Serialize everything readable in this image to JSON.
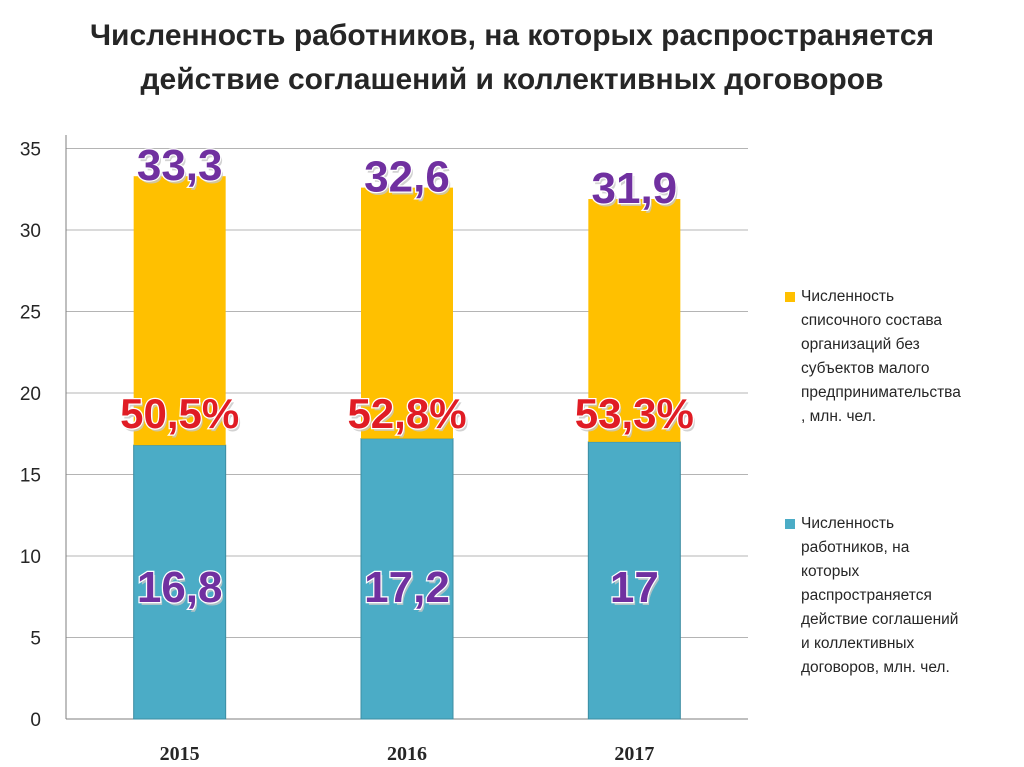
{
  "title_line1": "Численность работников, на которых распространяется",
  "title_line2": "действие соглашений и коллективных договоров",
  "chart_data": {
    "type": "bar",
    "stacked": true,
    "categories": [
      "2015",
      "2016",
      "2017"
    ],
    "series": [
      {
        "name": "Численность работников, на которых распространяется действие соглашений и коллективных договоров, млн. чел.",
        "values": [
          16.8,
          17.2,
          17
        ],
        "color": "#4bacc6",
        "labels": [
          "16,8",
          "17,2",
          "17"
        ]
      },
      {
        "name": "Численность списочного состава организаций без субъектов малого предпринимательства , млн. чел.",
        "values": [
          16.5,
          15.4,
          14.9
        ],
        "color": "#ffc000"
      }
    ],
    "totals": [
      33.3,
      32.6,
      31.9
    ],
    "total_labels": [
      "33,3",
      "32,6",
      "31,9"
    ],
    "share_labels": [
      "50,5%",
      "52,8%",
      "53,3%"
    ],
    "ylim": [
      0,
      35
    ],
    "yticks": [
      0,
      5,
      10,
      15,
      20,
      25,
      30,
      35
    ],
    "grid": true,
    "legend_position": "right"
  },
  "legend": {
    "item1_lines": [
      "Численность",
      "списочного состава",
      "организаций без",
      "субъектов малого",
      "предпринимательства",
      ", млн. чел."
    ],
    "item2_lines": [
      "Численность",
      "работников, на",
      "которых",
      "распространяется",
      "действие соглашений",
      "и коллективных",
      "договоров, млн. чел."
    ],
    "item1_color": "#ffc000",
    "item2_color": "#4bacc6"
  }
}
